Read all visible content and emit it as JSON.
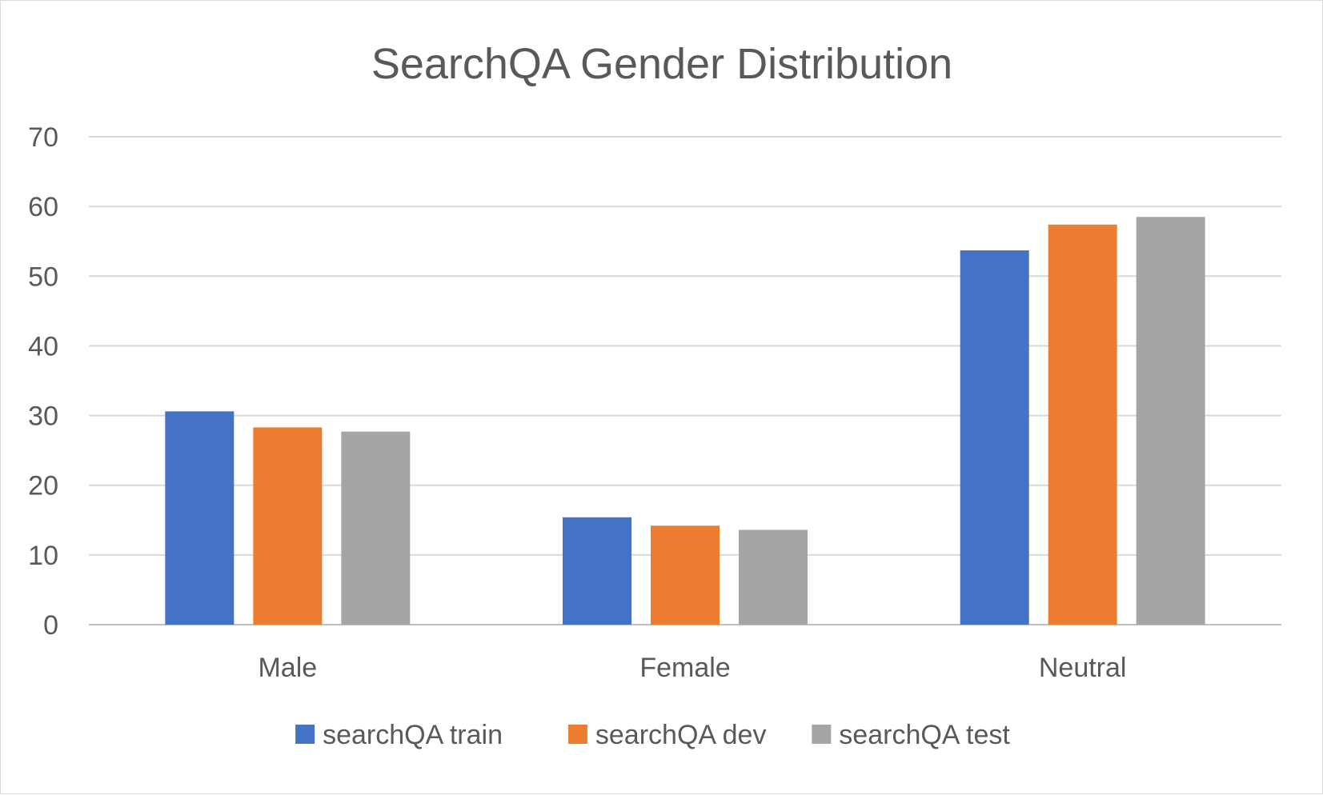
{
  "chart_data": {
    "type": "bar",
    "title": "SearchQA Gender Distribution",
    "xlabel": "",
    "ylabel": "",
    "categories": [
      "Male",
      "Female",
      "Neutral"
    ],
    "ylim": [
      0,
      70
    ],
    "yticks": [
      0,
      10,
      20,
      30,
      40,
      50,
      60,
      70
    ],
    "grid": true,
    "legend_position": "bottom",
    "series": [
      {
        "name": "searchQA train",
        "color": "#4472C4",
        "values": [
          30.6,
          15.4,
          53.7
        ]
      },
      {
        "name": "searchQA dev",
        "color": "#ED7D31",
        "values": [
          28.3,
          14.2,
          57.4
        ]
      },
      {
        "name": "searchQA test",
        "color": "#A5A5A5",
        "values": [
          27.7,
          13.6,
          58.5
        ]
      }
    ]
  }
}
